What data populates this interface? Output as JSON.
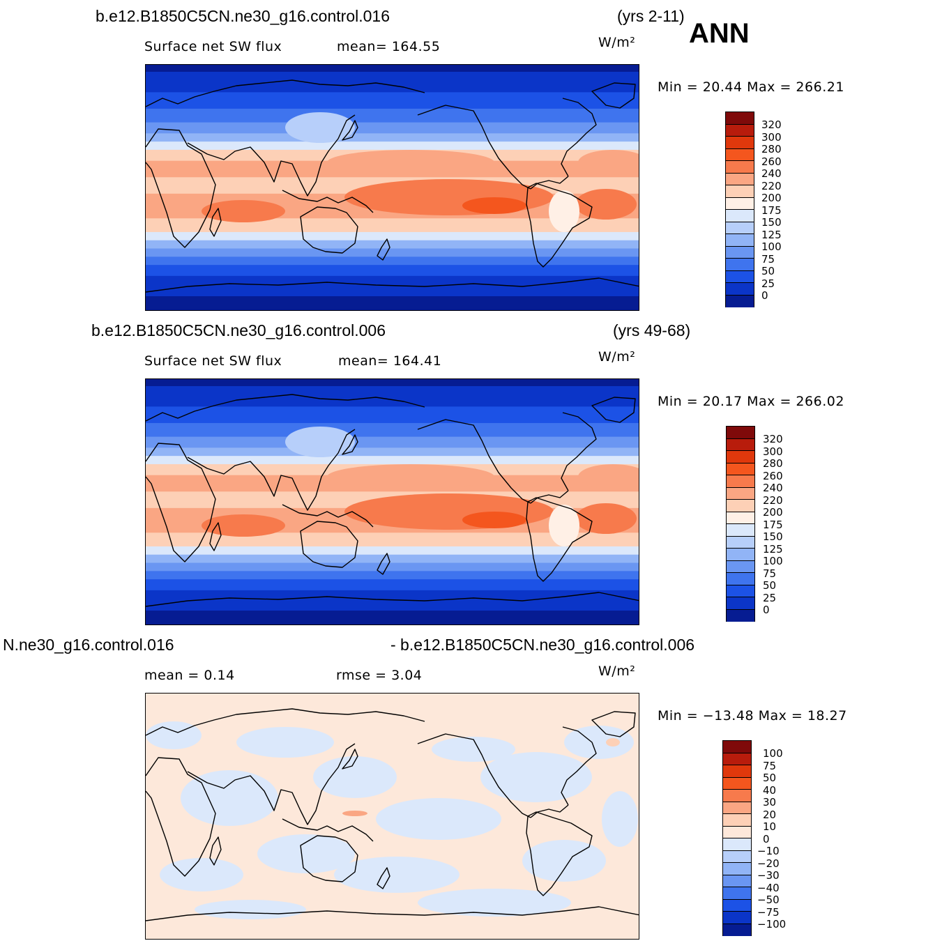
{
  "panels": [
    {
      "case_left": "b.e12.B1850C5CN.ne30_g16.control.016",
      "case_right": "(yrs 2-11)",
      "season": "ANN",
      "left_sub": "Surface net SW flux",
      "stat": "mean=  164.55",
      "stat2": "",
      "units": "W/m²",
      "minmax": "Min  =    20.44  Max  =  266.21",
      "levels": [
        "320",
        "300",
        "280",
        "260",
        "240",
        "220",
        "200",
        "175",
        "150",
        "125",
        "100",
        "75",
        "50",
        "25",
        "0"
      ],
      "map_style": "field"
    },
    {
      "case_left": "b.e12.B1850C5CN.ne30_g16.control.006",
      "case_right": "(yrs 49-68)",
      "season": "",
      "left_sub": "Surface net SW flux",
      "stat": "mean=  164.41",
      "stat2": "",
      "units": "W/m²",
      "minmax": "Min  =    20.17  Max  =  266.02",
      "levels": [
        "320",
        "300",
        "280",
        "260",
        "240",
        "220",
        "200",
        "175",
        "150",
        "125",
        "100",
        "75",
        "50",
        "25",
        "0"
      ],
      "map_style": "field"
    },
    {
      "case_left": "N.ne30_g16.control.016",
      "case_right": "- b.e12.B1850C5CN.ne30_g16.control.006",
      "season": "",
      "left_sub": "mean  =      0.14",
      "stat": "rmse  =      3.04",
      "stat2": "",
      "units": "W/m²",
      "minmax": "Min  = −13.48  Max  =     18.27",
      "levels": [
        "100",
        "75",
        "50",
        "40",
        "30",
        "20",
        "10",
        "0",
        "−10",
        "−20",
        "−30",
        "−40",
        "−50",
        "−75",
        "−100"
      ],
      "map_style": "diff"
    }
  ],
  "colors": {
    "field_scale": [
      "#7f0a0a",
      "#b81c0c",
      "#e0380c",
      "#f4561e",
      "#f77a4c",
      "#faa683",
      "#fdd0b6",
      "#fff0e6",
      "#dbe8fb",
      "#b7cffa",
      "#91b4f6",
      "#6a96f2",
      "#3f74ee",
      "#1c52e6",
      "#0b35c8",
      "#061c92"
    ],
    "diff_scale": [
      "#7f0a0a",
      "#b81c0c",
      "#e0380c",
      "#f4561e",
      "#f77a4c",
      "#faa683",
      "#fdd0b6",
      "#fde8da",
      "#dbe8fb",
      "#b7cffa",
      "#91b4f6",
      "#6a96f2",
      "#3f74ee",
      "#1c52e6",
      "#0b35c8",
      "#061c92"
    ]
  }
}
